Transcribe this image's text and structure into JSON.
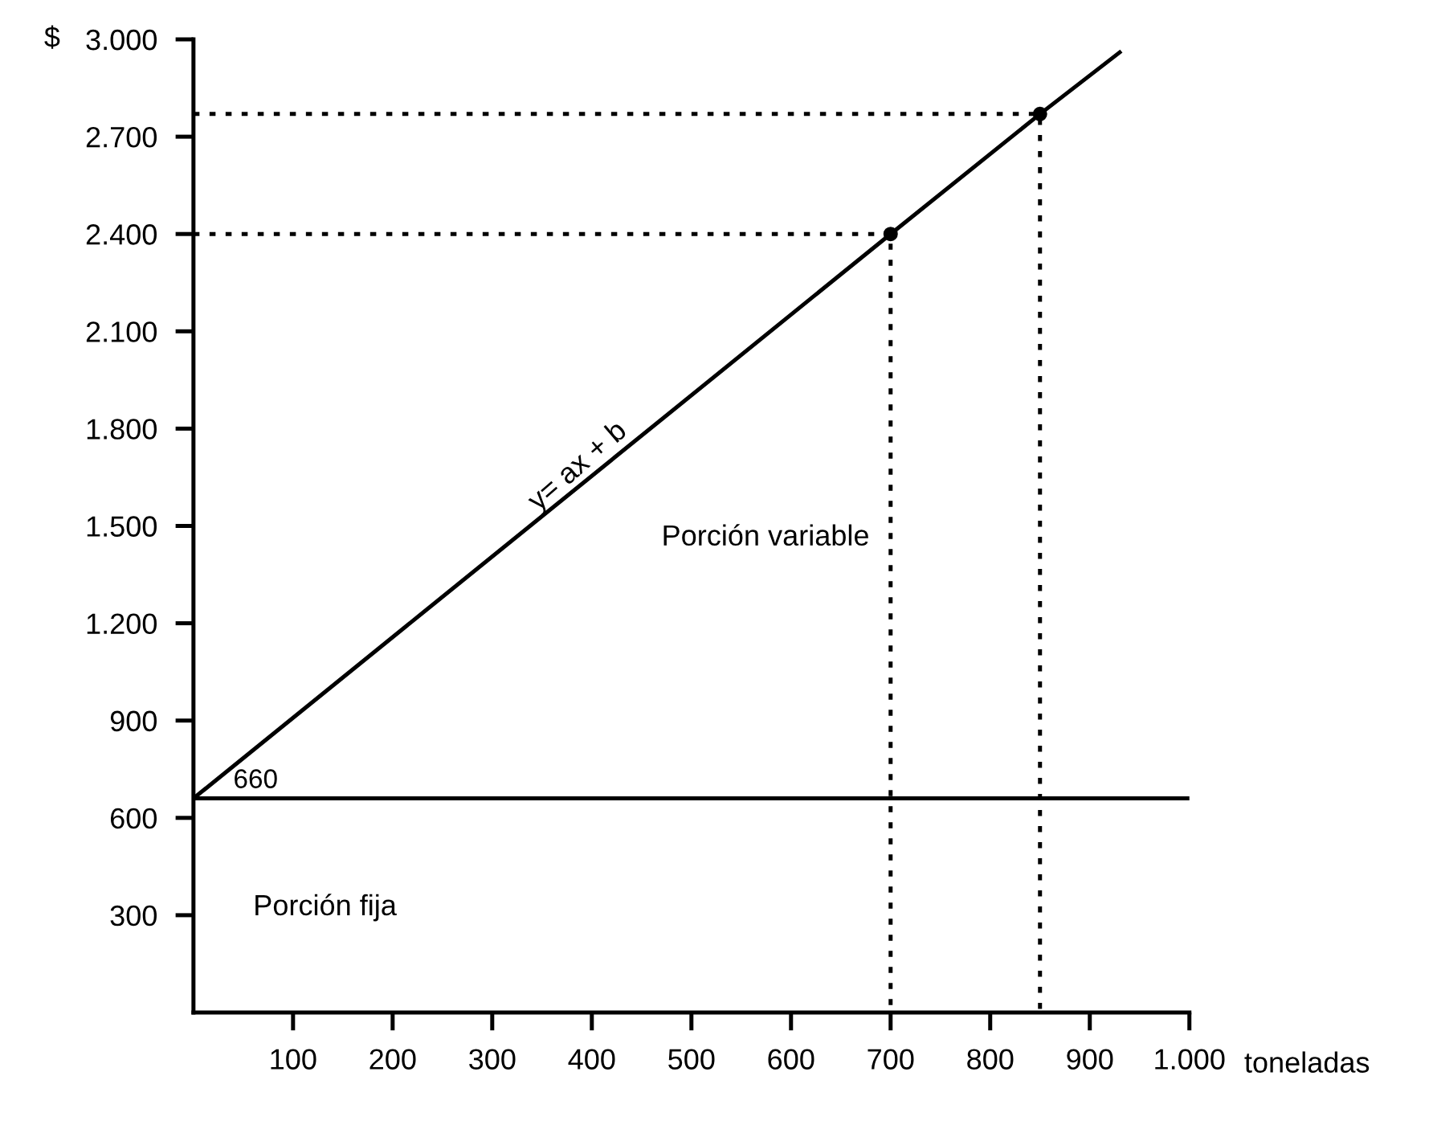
{
  "chart_data": {
    "type": "line",
    "xlabel": "toneladas",
    "ylabel": "$",
    "series": [
      {
        "color": "#000000",
        "x": [
          0,
          700,
          850,
          930
        ],
        "values": [
          660,
          2400,
          2770,
          2960
        ],
        "marker": "none",
        "line_style": "solid"
      },
      {
        "type": "scatter",
        "color": "#000000",
        "x": [
          700,
          850
        ],
        "values": [
          2400,
          2770
        ],
        "marker": "circle"
      },
      {
        "color": "#000000",
        "x": [
          0,
          700,
          700
        ],
        "values": [
          2400,
          2400,
          0
        ],
        "marker": "none",
        "line_style": "dotted"
      },
      {
        "color": "#000000",
        "x": [
          0,
          850,
          850
        ],
        "values": [
          2770,
          2770,
          0
        ],
        "marker": "none",
        "line_style": "dotted"
      }
    ],
    "ref_lines": [
      {
        "axis": "y",
        "value": 660,
        "label": "660",
        "color": "#000000",
        "line_style": "solid"
      }
    ],
    "annotations": [
      {
        "text": "y= ax + b",
        "x": 350,
        "y": 1530
      },
      "Porción variable",
      "Porción fija"
    ],
    "xlim": [
      0,
      1000
    ],
    "ylim": [
      0,
      3000
    ],
    "xticks": [
      100,
      200,
      300,
      400,
      500,
      600,
      700,
      800,
      900,
      {
        "value": 1000,
        "label": "1.000"
      }
    ],
    "yticks": [
      300,
      600,
      900,
      {
        "value": 1200,
        "label": "1.200"
      },
      {
        "value": 1500,
        "label": "1.500"
      },
      {
        "value": 1800,
        "label": "1.800"
      },
      {
        "value": 2100,
        "label": "2.100"
      },
      {
        "value": 2400,
        "label": "2.400"
      },
      {
        "value": 2700,
        "label": "2.700"
      },
      {
        "value": 3000,
        "label": "3.000"
      }
    ],
    "grid": false,
    "legend": false
  }
}
